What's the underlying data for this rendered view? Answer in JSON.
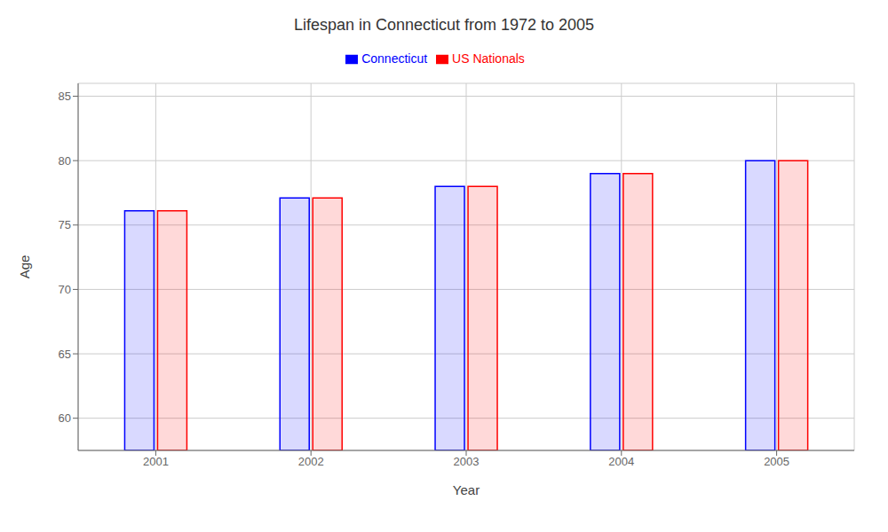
{
  "chart_data": {
    "type": "bar",
    "title": "Lifespan in Connecticut from 1972 to 2005",
    "xlabel": "Year",
    "ylabel": "Age",
    "categories": [
      "2001",
      "2002",
      "2003",
      "2004",
      "2005"
    ],
    "series": [
      {
        "name": "Connecticut",
        "color": "#0000ff",
        "values": [
          76.1,
          77.1,
          78.0,
          79.0,
          80.0
        ]
      },
      {
        "name": "US Nationals",
        "color": "#ff0000",
        "values": [
          76.1,
          77.1,
          78.0,
          79.0,
          80.0
        ]
      }
    ],
    "ylim": [
      57.5,
      86
    ],
    "yticks": [
      60,
      65,
      70,
      75,
      80,
      85
    ],
    "grid": true
  }
}
